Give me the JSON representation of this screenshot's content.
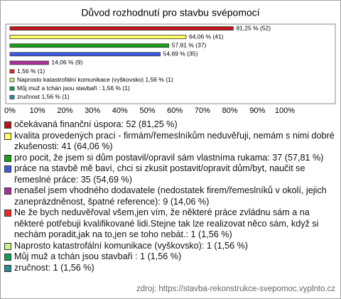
{
  "chart_data": {
    "type": "bar",
    "orientation": "horizontal",
    "title": "Důvod rozhodnutí pro stavbu svépomocí",
    "categories": [
      "očekávaná finanční úspora: 52 (81,25 %)",
      "kvalita provedených prací - firmám/řemeslníkům neduvěřuji, nemám s nimi dobré zkušenosti: 41 (64,06 %)",
      "pro pocit, že jsem si dům postavil/opravil sám vlastníma rukama: 37 (57,81 %)",
      "práce na stavbě mě baví, chci si zkusit postavit/opravit dům/byt, naučit se řemeslné práce: 35 (54,69 %)",
      "nenašel jsem vhodného dodavatele (nedostatek firem/řemeslníků v okolí, jejich zaneprázdněnost, špatné reference): 9 (14,06 %)",
      "Ne že bych neduvěřoval všem,jen vím, že některé práce zvládnu sám a na některé potřebuji kvalifikované lidi.Stejne tak lze realizovat něco sám, když si nechám poradit,jak na to,jen se toho nebát.: 1 (1,56 %)",
      "Naprosto katastrofální komunikace (vyškovsko): 1 (1,56 %)",
      "Můj muž a tchán jsou stavbaři : 1 (1,56 %)",
      "zručnost: 1 (1,56 %)"
    ],
    "values": [
      81.25,
      64.06,
      57.81,
      54.69,
      14.06,
      1.56,
      1.56,
      1.56,
      1.56
    ],
    "value_labels": [
      "81,25 % (52)",
      "64,06 % (41)",
      "57,81 % (37)",
      "54,69 % (35)",
      "14,06 % (9)",
      "1,56 % (1)",
      "Naprosto katastrofální komunikace (vyškovsko) 1,56 % (1)",
      "Můj muž a tchán jsou stavbaři : 1,56 % (1)",
      "zručnost 1,56 % (1)"
    ],
    "colors": [
      "#c0141a",
      "#ffff66",
      "#18a018",
      "#3c5ce8",
      "#a8329c",
      "#f02828",
      "#ccf08c",
      "#10a050",
      "#2c8c94"
    ],
    "xlim": [
      0,
      100
    ],
    "xticks": [
      {
        "value": 0,
        "label": "0%"
      },
      {
        "value": 10,
        "label": "10%"
      },
      {
        "value": 20,
        "label": "20%"
      },
      {
        "value": 30,
        "label": "30%"
      },
      {
        "value": 40,
        "label": "40%"
      },
      {
        "value": 50,
        "label": "50%"
      },
      {
        "value": 60,
        "label": "60%"
      },
      {
        "value": 70,
        "label": "70%"
      },
      {
        "value": 80,
        "label": "80%"
      },
      {
        "value": 90,
        "label": "90%"
      },
      {
        "value": 100,
        "label": "100%"
      }
    ],
    "grid": false,
    "source": "zdroj: https://stavba-rekonstrukce-svepomoc.vyplnto.cz"
  }
}
